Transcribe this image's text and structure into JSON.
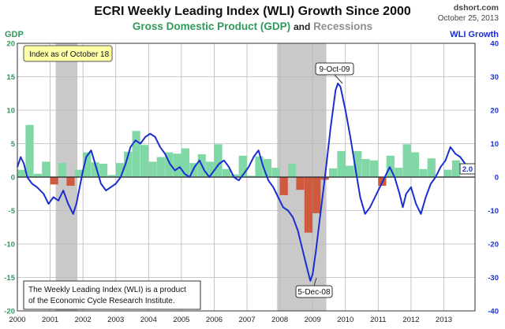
{
  "header": {
    "title": "ECRI Weekly Leading Index (WLI) Growth Since 2000",
    "subtitle_gdp": "Gross Domestic Product (GDP)",
    "subtitle_and": "and",
    "subtitle_recessions": "Recessions",
    "source": "dshort.com",
    "date": "October 25, 2013"
  },
  "axes": {
    "left_label": "GDP",
    "right_label": "WLI Growth"
  },
  "annotations": {
    "index_box": "Index as of October 18",
    "peak_label": "9-Oct-09",
    "trough_label": "5-Dec-08",
    "last_value": "2.0",
    "note_line1": "The Weekly Leading Index (WLI) is a product",
    "note_line2": "of the Economic Cycle Research Institute."
  },
  "colors": {
    "wli_line": "#1a2fd0",
    "gdp_positive": "#7fd8a6",
    "gdp_negative": "#cf5a3e",
    "recession": "#c9c9c9",
    "left_axis": "#2e9a5a",
    "right_axis": "#1a2fd0"
  },
  "chart_data": {
    "type": "bar",
    "x_ticks": [
      "2000",
      "2001",
      "2002",
      "2003",
      "2004",
      "2005",
      "2006",
      "2007",
      "2008",
      "2009",
      "2010",
      "2011",
      "2012",
      "2013"
    ],
    "left_axis": {
      "ylim": [
        -20,
        20
      ],
      "ticks": [
        -20,
        -15,
        -10,
        -5,
        0,
        5,
        10,
        15,
        20
      ]
    },
    "right_axis": {
      "ylim": [
        -40,
        40
      ],
      "ticks": [
        -40,
        -30,
        -20,
        -10,
        0,
        10,
        20,
        30,
        40
      ]
    },
    "grid": true,
    "recessions": [
      {
        "start": 2001.17,
        "end": 2001.83
      },
      {
        "start": 2007.92,
        "end": 2009.42
      }
    ],
    "gdp_series": {
      "quarters": [
        2000.0,
        2000.25,
        2000.5,
        2000.75,
        2001.0,
        2001.25,
        2001.5,
        2001.75,
        2002.0,
        2002.25,
        2002.5,
        2002.75,
        2003.0,
        2003.25,
        2003.5,
        2003.75,
        2004.0,
        2004.25,
        2004.5,
        2004.75,
        2005.0,
        2005.25,
        2005.5,
        2005.75,
        2006.0,
        2006.25,
        2006.5,
        2006.75,
        2007.0,
        2007.25,
        2007.5,
        2007.75,
        2008.0,
        2008.25,
        2008.5,
        2008.75,
        2009.0,
        2009.25,
        2009.5,
        2009.75,
        2010.0,
        2010.25,
        2010.5,
        2010.75,
        2011.0,
        2011.25,
        2011.5,
        2011.75,
        2012.0,
        2012.25,
        2012.5,
        2012.75,
        2013.0,
        2013.25
      ],
      "values": [
        1.1,
        7.8,
        0.5,
        2.3,
        -1.1,
        2.1,
        -1.3,
        1.1,
        3.7,
        2.2,
        2.0,
        0.3,
        2.1,
        3.8,
        6.9,
        4.8,
        2.3,
        3.0,
        3.7,
        3.5,
        4.3,
        2.1,
        3.4,
        2.3,
        4.9,
        1.2,
        0.4,
        3.2,
        0.2,
        3.1,
        2.7,
        1.4,
        -2.7,
        2.0,
        -1.9,
        -8.3,
        -5.4,
        -0.4,
        1.3,
        3.9,
        1.7,
        3.9,
        2.7,
        2.5,
        -1.3,
        3.2,
        1.4,
        4.9,
        3.7,
        1.2,
        2.8,
        0.1,
        1.1,
        2.5
      ]
    },
    "wli_series": {
      "name": "WLI Growth",
      "x": [
        2000.0,
        2000.1,
        2000.2,
        2000.3,
        2000.45,
        2000.6,
        2000.8,
        2000.95,
        2001.1,
        2001.25,
        2001.4,
        2001.55,
        2001.7,
        2001.8,
        2001.9,
        2002.0,
        2002.1,
        2002.25,
        2002.4,
        2002.55,
        2002.7,
        2002.85,
        2003.0,
        2003.15,
        2003.3,
        2003.45,
        2003.6,
        2003.75,
        2003.9,
        2004.05,
        2004.2,
        2004.35,
        2004.5,
        2004.65,
        2004.8,
        2004.95,
        2005.1,
        2005.25,
        2005.4,
        2005.55,
        2005.7,
        2005.85,
        2006.0,
        2006.15,
        2006.3,
        2006.45,
        2006.6,
        2006.75,
        2006.9,
        2007.05,
        2007.2,
        2007.35,
        2007.5,
        2007.65,
        2007.8,
        2007.95,
        2008.1,
        2008.25,
        2008.4,
        2008.55,
        2008.7,
        2008.85,
        2008.93,
        2009.0,
        2009.1,
        2009.25,
        2009.4,
        2009.55,
        2009.7,
        2009.77,
        2009.85,
        2010.0,
        2010.15,
        2010.3,
        2010.45,
        2010.6,
        2010.75,
        2010.9,
        2011.05,
        2011.2,
        2011.35,
        2011.5,
        2011.65,
        2011.75,
        2011.85,
        2012.0,
        2012.15,
        2012.3,
        2012.45,
        2012.6,
        2012.75,
        2012.9,
        2013.05,
        2013.2,
        2013.35,
        2013.5,
        2013.65,
        2013.8
      ],
      "y": [
        3,
        6,
        4,
        0,
        -2,
        -3,
        -5,
        -8,
        -6,
        -7,
        -4,
        -8,
        -11,
        -8,
        -3,
        2,
        6,
        8,
        3,
        -2,
        -4,
        -3,
        -2,
        0,
        4,
        9,
        11,
        10,
        12,
        13,
        12,
        9,
        7,
        4,
        2,
        3,
        1,
        0,
        3,
        5,
        2,
        0,
        2,
        4,
        5,
        3,
        0,
        -1,
        1,
        3,
        6,
        8,
        3,
        -1,
        -3,
        -6,
        -9,
        -10,
        -12,
        -16,
        -22,
        -28,
        -31,
        -29,
        -22,
        -10,
        2,
        15,
        26,
        28,
        27,
        20,
        12,
        3,
        -6,
        -11,
        -9,
        -6,
        -3,
        0,
        3,
        0,
        -5,
        -9,
        -5,
        -3,
        -8,
        -11,
        -6,
        -2,
        0,
        3,
        5,
        9,
        7,
        6,
        4,
        2
      ]
    }
  }
}
